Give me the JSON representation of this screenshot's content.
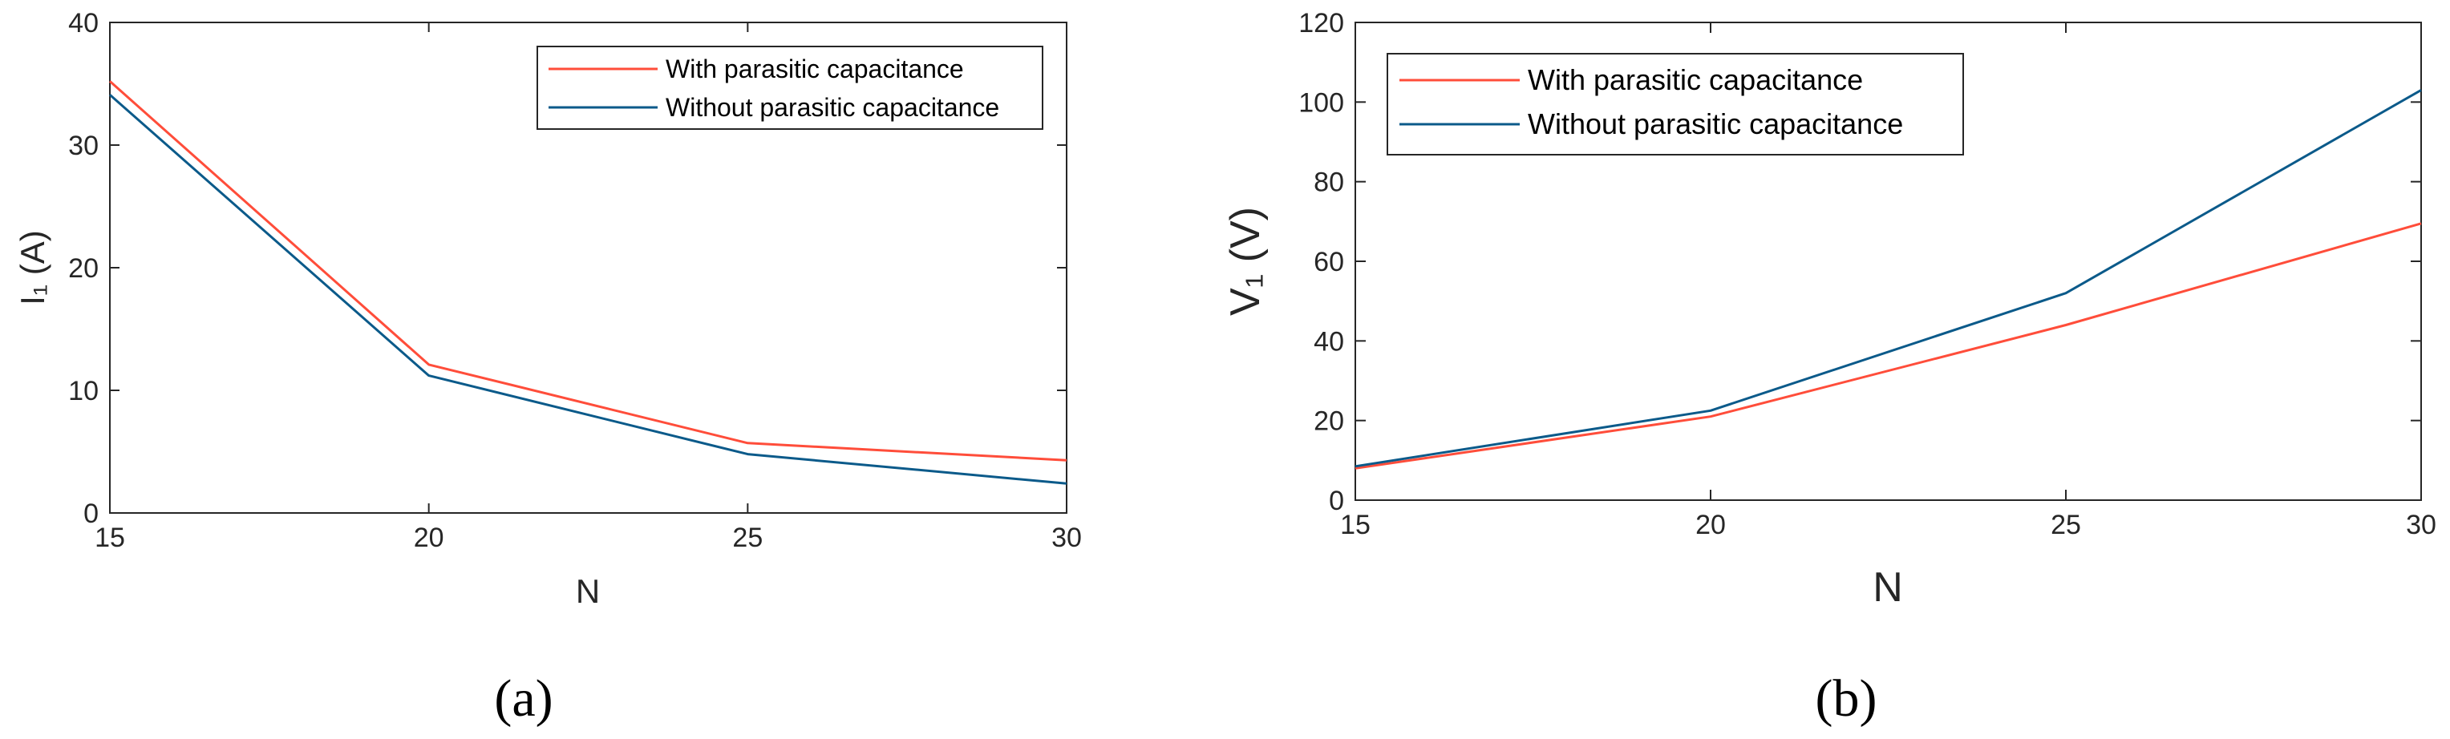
{
  "colors": {
    "with": "#ff4d3a",
    "without": "#0b5a8a",
    "axis": "#262626"
  },
  "chart_data": [
    {
      "type": "line",
      "panel_label": "(a)",
      "x": [
        15,
        20,
        25,
        30
      ],
      "xlabel": "N",
      "ylabel": "I₁ (A)",
      "xlim": [
        15,
        30
      ],
      "ylim": [
        0,
        40
      ],
      "xticks": [
        15,
        20,
        25,
        30
      ],
      "yticks": [
        0,
        10,
        20,
        30,
        40
      ],
      "grid": false,
      "legend_position": "top-right",
      "series": [
        {
          "name": "With parasitic capacitance",
          "values": [
            35.2,
            12.1,
            5.7,
            4.3
          ],
          "color": "#ff4d3a"
        },
        {
          "name": "Without parasitic capacitance",
          "values": [
            34.1,
            11.2,
            4.8,
            2.4
          ],
          "color": "#0b5a8a"
        }
      ]
    },
    {
      "type": "line",
      "panel_label": "(b)",
      "x": [
        15,
        20,
        25,
        30
      ],
      "xlabel": "N",
      "ylabel": "V₁ (V)",
      "xlim": [
        15,
        30
      ],
      "ylim": [
        0,
        120
      ],
      "xticks": [
        15,
        20,
        25,
        30
      ],
      "yticks": [
        0,
        20,
        40,
        60,
        80,
        100,
        120
      ],
      "grid": false,
      "legend_position": "top-left",
      "series": [
        {
          "name": "With parasitic capacitance",
          "values": [
            8.0,
            21.0,
            44.0,
            69.5
          ],
          "color": "#ff4d3a"
        },
        {
          "name": "Without parasitic capacitance",
          "values": [
            8.5,
            22.5,
            52.0,
            103.0
          ],
          "color": "#0b5a8a"
        }
      ]
    }
  ]
}
